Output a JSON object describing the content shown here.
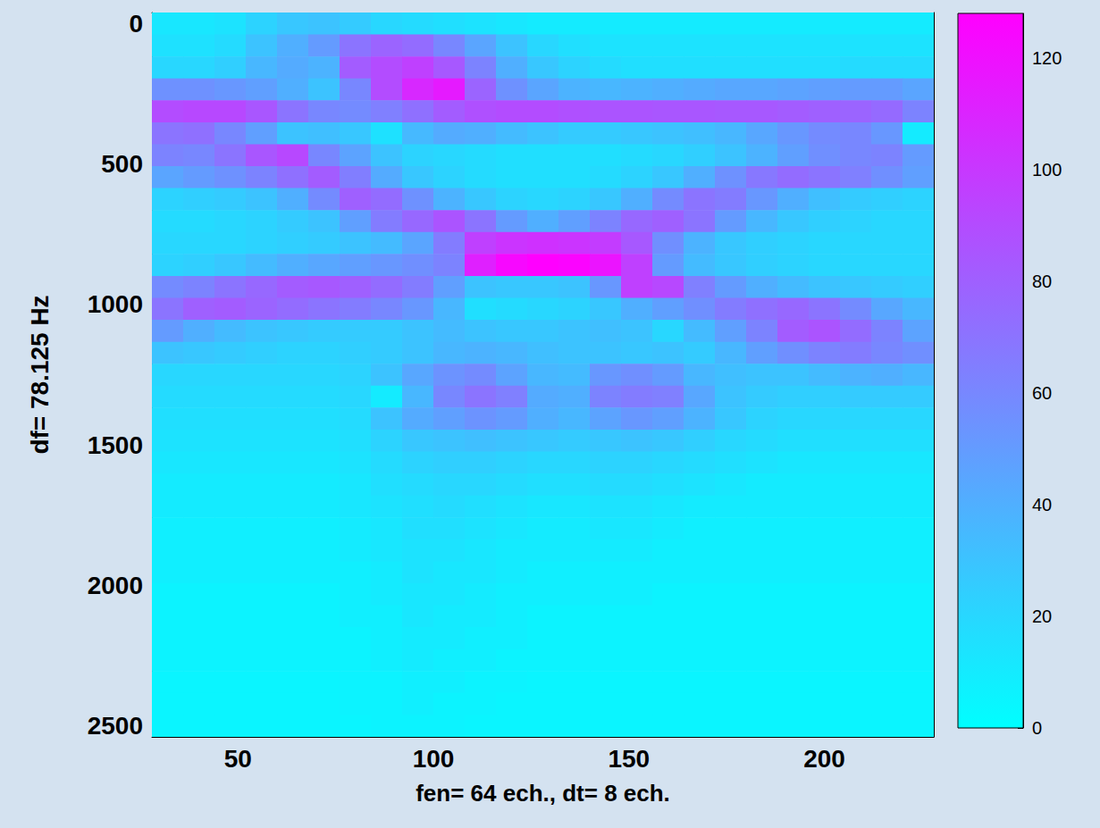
{
  "chart_data": {
    "type": "heatmap",
    "x_label": "fen= 64 ech., dt= 8 ech.",
    "y_label": "df= 78.125 Hz",
    "x": [
      32,
      40,
      48,
      56,
      64,
      72,
      80,
      88,
      96,
      104,
      112,
      120,
      128,
      136,
      144,
      152,
      160,
      168,
      176,
      184,
      192,
      200,
      208,
      216,
      224
    ],
    "y": [
      0,
      78.125,
      156.25,
      234.375,
      312.5,
      390.625,
      468.75,
      546.875,
      625,
      703.125,
      781.25,
      859.375,
      937.5,
      1015.625,
      1093.75,
      1171.875,
      1250,
      1328.125,
      1406.25,
      1484.375,
      1562.5,
      1640.625,
      1718.75,
      1796.875,
      1875,
      1953.125,
      2031.25,
      2109.375,
      2187.5,
      2265.625,
      2343.75,
      2421.875,
      2500
    ],
    "z": [
      [
        12,
        12,
        14,
        22,
        28,
        30,
        26,
        20,
        18,
        16,
        14,
        12,
        10,
        10,
        10,
        10,
        10,
        10,
        10,
        10,
        10,
        10,
        10,
        10,
        10
      ],
      [
        15,
        15,
        18,
        30,
        40,
        50,
        70,
        78,
        74,
        60,
        45,
        30,
        20,
        16,
        14,
        14,
        14,
        14,
        14,
        14,
        14,
        14,
        14,
        14,
        14
      ],
      [
        20,
        20,
        24,
        36,
        42,
        38,
        82,
        90,
        96,
        84,
        62,
        40,
        28,
        22,
        18,
        16,
        16,
        16,
        16,
        16,
        16,
        16,
        18,
        18,
        18
      ],
      [
        55,
        55,
        52,
        48,
        40,
        30,
        60,
        90,
        108,
        115,
        78,
        55,
        45,
        38,
        36,
        38,
        40,
        42,
        44,
        44,
        46,
        48,
        50,
        50,
        45
      ],
      [
        90,
        92,
        92,
        85,
        70,
        60,
        58,
        64,
        72,
        82,
        88,
        90,
        90,
        88,
        86,
        86,
        85,
        85,
        84,
        84,
        82,
        80,
        78,
        75,
        62
      ],
      [
        70,
        72,
        60,
        48,
        30,
        32,
        28,
        15,
        35,
        42,
        40,
        34,
        30,
        26,
        26,
        28,
        30,
        32,
        36,
        44,
        52,
        58,
        60,
        52,
        10
      ],
      [
        62,
        60,
        70,
        85,
        92,
        60,
        46,
        30,
        22,
        20,
        18,
        16,
        16,
        16,
        16,
        18,
        20,
        24,
        30,
        38,
        48,
        56,
        60,
        62,
        50
      ],
      [
        45,
        50,
        55,
        62,
        72,
        82,
        65,
        42,
        28,
        22,
        18,
        16,
        16,
        16,
        18,
        22,
        28,
        40,
        55,
        68,
        74,
        70,
        64,
        56,
        48
      ],
      [
        22,
        24,
        26,
        30,
        40,
        58,
        80,
        74,
        55,
        38,
        28,
        22,
        20,
        22,
        28,
        40,
        58,
        70,
        66,
        52,
        40,
        32,
        26,
        24,
        22
      ],
      [
        18,
        18,
        20,
        22,
        26,
        30,
        48,
        66,
        76,
        86,
        70,
        50,
        40,
        48,
        62,
        76,
        80,
        70,
        50,
        36,
        28,
        24,
        22,
        20,
        20
      ],
      [
        20,
        20,
        20,
        22,
        24,
        26,
        30,
        34,
        45,
        66,
        96,
        102,
        104,
        102,
        98,
        84,
        56,
        38,
        28,
        24,
        22,
        20,
        20,
        20,
        20
      ],
      [
        22,
        24,
        28,
        34,
        40,
        44,
        48,
        52,
        56,
        62,
        112,
        124,
        128,
        126,
        118,
        96,
        50,
        34,
        28,
        24,
        22,
        20,
        20,
        20,
        20
      ],
      [
        58,
        62,
        70,
        76,
        82,
        84,
        80,
        74,
        66,
        48,
        30,
        28,
        28,
        30,
        52,
        96,
        92,
        64,
        50,
        40,
        34,
        30,
        28,
        26,
        24
      ],
      [
        70,
        80,
        82,
        78,
        74,
        70,
        66,
        60,
        52,
        36,
        16,
        18,
        20,
        22,
        28,
        40,
        48,
        56,
        66,
        72,
        76,
        70,
        58,
        44,
        36
      ],
      [
        50,
        40,
        34,
        30,
        28,
        26,
        26,
        26,
        30,
        34,
        30,
        28,
        28,
        30,
        32,
        30,
        20,
        34,
        48,
        62,
        82,
        86,
        74,
        62,
        46
      ],
      [
        30,
        28,
        26,
        24,
        22,
        22,
        24,
        26,
        30,
        36,
        38,
        36,
        32,
        30,
        30,
        28,
        30,
        26,
        36,
        48,
        56,
        62,
        66,
        60,
        56
      ],
      [
        20,
        20,
        20,
        20,
        20,
        20,
        22,
        30,
        44,
        54,
        58,
        46,
        36,
        34,
        52,
        56,
        50,
        36,
        32,
        30,
        30,
        34,
        38,
        40,
        36
      ],
      [
        18,
        18,
        18,
        18,
        18,
        18,
        20,
        10,
        36,
        60,
        70,
        64,
        42,
        40,
        62,
        66,
        64,
        44,
        30,
        26,
        24,
        24,
        26,
        26,
        26
      ],
      [
        16,
        16,
        16,
        16,
        16,
        16,
        18,
        30,
        42,
        48,
        54,
        50,
        40,
        36,
        46,
        52,
        48,
        38,
        28,
        22,
        20,
        20,
        20,
        20,
        20
      ],
      [
        14,
        14,
        14,
        14,
        14,
        14,
        16,
        22,
        28,
        30,
        32,
        30,
        28,
        26,
        28,
        30,
        28,
        24,
        20,
        18,
        16,
        16,
        16,
        16,
        16
      ],
      [
        12,
        12,
        12,
        12,
        12,
        12,
        14,
        18,
        22,
        24,
        24,
        22,
        20,
        20,
        22,
        22,
        20,
        18,
        16,
        14,
        12,
        12,
        12,
        12,
        12
      ],
      [
        10,
        10,
        10,
        10,
        10,
        10,
        12,
        16,
        18,
        20,
        20,
        18,
        16,
        16,
        18,
        18,
        16,
        14,
        12,
        10,
        10,
        10,
        10,
        10,
        10
      ],
      [
        10,
        10,
        10,
        10,
        10,
        10,
        12,
        14,
        16,
        18,
        16,
        14,
        12,
        12,
        14,
        14,
        12,
        10,
        10,
        10,
        10,
        10,
        10,
        10,
        10
      ],
      [
        8,
        8,
        8,
        8,
        8,
        8,
        10,
        12,
        16,
        16,
        14,
        12,
        10,
        10,
        12,
        12,
        10,
        8,
        8,
        8,
        8,
        8,
        8,
        8,
        8
      ],
      [
        8,
        8,
        8,
        8,
        8,
        8,
        10,
        12,
        14,
        14,
        12,
        10,
        10,
        10,
        10,
        10,
        8,
        8,
        8,
        8,
        8,
        8,
        8,
        8,
        8
      ],
      [
        8,
        8,
        8,
        8,
        8,
        8,
        8,
        10,
        14,
        12,
        12,
        10,
        8,
        8,
        8,
        8,
        8,
        8,
        8,
        8,
        8,
        8,
        8,
        8,
        8
      ],
      [
        6,
        6,
        6,
        6,
        6,
        6,
        8,
        10,
        12,
        12,
        10,
        8,
        8,
        8,
        8,
        8,
        6,
        6,
        6,
        6,
        6,
        6,
        6,
        6,
        6
      ],
      [
        6,
        6,
        6,
        6,
        6,
        6,
        8,
        8,
        12,
        10,
        10,
        8,
        6,
        6,
        6,
        6,
        6,
        6,
        6,
        6,
        6,
        6,
        6,
        6,
        6
      ],
      [
        6,
        6,
        6,
        6,
        6,
        6,
        6,
        8,
        10,
        10,
        8,
        8,
        6,
        6,
        6,
        6,
        6,
        6,
        6,
        6,
        6,
        6,
        6,
        6,
        6
      ],
      [
        6,
        6,
        6,
        6,
        6,
        6,
        6,
        8,
        10,
        8,
        8,
        6,
        6,
        6,
        6,
        6,
        6,
        6,
        6,
        6,
        6,
        6,
        6,
        6,
        6
      ],
      [
        5,
        5,
        5,
        5,
        5,
        5,
        6,
        6,
        8,
        8,
        6,
        6,
        5,
        5,
        5,
        5,
        5,
        5,
        5,
        5,
        5,
        5,
        5,
        5,
        5
      ],
      [
        5,
        5,
        5,
        5,
        5,
        5,
        6,
        6,
        8,
        6,
        6,
        5,
        5,
        5,
        5,
        5,
        5,
        5,
        5,
        5,
        5,
        5,
        5,
        5,
        5
      ],
      [
        5,
        5,
        5,
        5,
        5,
        5,
        5,
        6,
        6,
        6,
        5,
        5,
        5,
        5,
        5,
        5,
        5,
        5,
        5,
        5,
        5,
        5,
        5,
        5,
        5
      ]
    ],
    "xlim": [
      28,
      228
    ],
    "ylim": [
      -39.0625,
      2539.0625
    ],
    "xticks": [
      50,
      100,
      150,
      200
    ],
    "yticks": [
      0,
      500,
      1000,
      1500,
      2000,
      2500
    ],
    "colorbar": {
      "lim": [
        0,
        128
      ],
      "ticks": [
        0,
        20,
        40,
        60,
        80,
        100,
        120
      ],
      "colors": [
        "#00ffff",
        "#ff00ff"
      ]
    }
  }
}
